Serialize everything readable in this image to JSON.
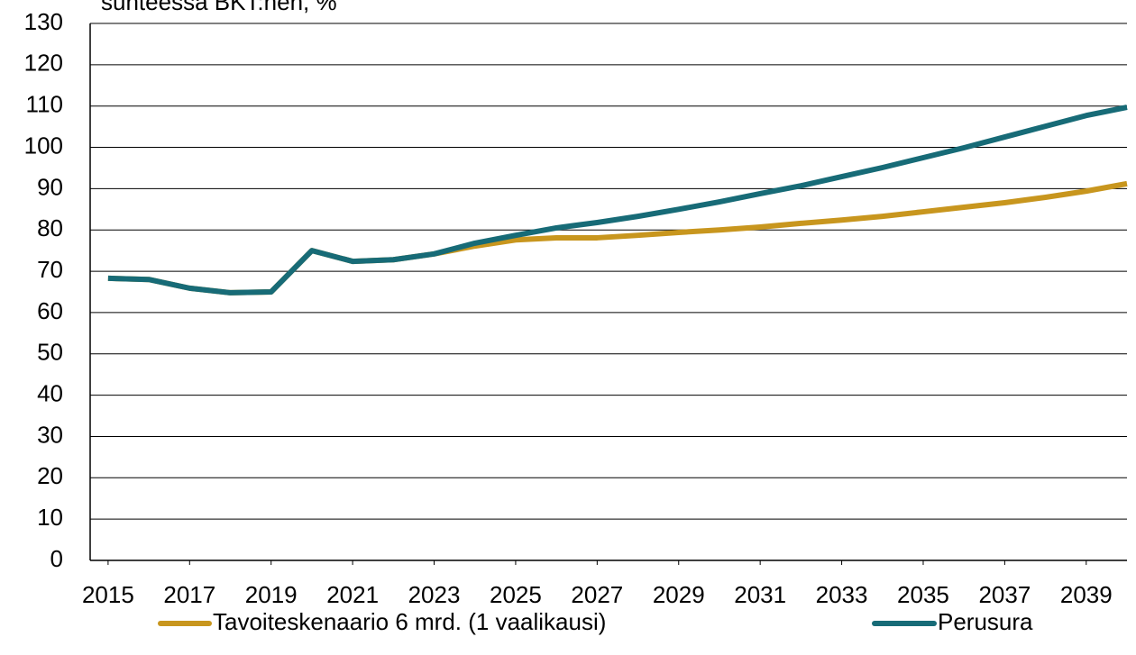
{
  "chart_data": {
    "type": "line",
    "title": "suhteessa BKT:hen, %",
    "x": [
      2015,
      2016,
      2017,
      2018,
      2019,
      2020,
      2021,
      2022,
      2023,
      2024,
      2025,
      2026,
      2027,
      2028,
      2029,
      2030,
      2031,
      2032,
      2033,
      2034,
      2035,
      2036,
      2037,
      2038,
      2039,
      2040
    ],
    "series": [
      {
        "name": "Tavoiteskenaario 6 mrd. (1 vaalikausi)",
        "color": "#c8961e",
        "values": [
          68.3,
          68.0,
          65.9,
          64.8,
          65.0,
          75.0,
          72.4,
          72.8,
          74.2,
          76.1,
          77.6,
          78.1,
          78.1,
          78.7,
          79.4,
          80.0,
          80.7,
          81.6,
          82.4,
          83.3,
          84.4,
          85.5,
          86.6,
          87.9,
          89.4,
          91.2
        ]
      },
      {
        "name": "Perusura",
        "color": "#176b77",
        "values": [
          68.3,
          68.0,
          65.9,
          64.8,
          65.0,
          75.0,
          72.4,
          72.8,
          74.2,
          76.8,
          78.7,
          80.5,
          81.8,
          83.3,
          85.0,
          86.8,
          88.8,
          90.7,
          92.9,
          95.1,
          97.5,
          99.9,
          102.5,
          105.1,
          107.7,
          109.7
        ]
      }
    ],
    "xlim": [
      2014.56,
      2040
    ],
    "xticks": [
      2015,
      2017,
      2019,
      2021,
      2023,
      2025,
      2027,
      2029,
      2031,
      2033,
      2035,
      2037,
      2039
    ],
    "ylim": [
      0,
      130
    ],
    "yticks": [
      0,
      10,
      20,
      30,
      40,
      50,
      60,
      70,
      80,
      90,
      100,
      110,
      120,
      130
    ],
    "grid": true,
    "legend": "bottom"
  }
}
